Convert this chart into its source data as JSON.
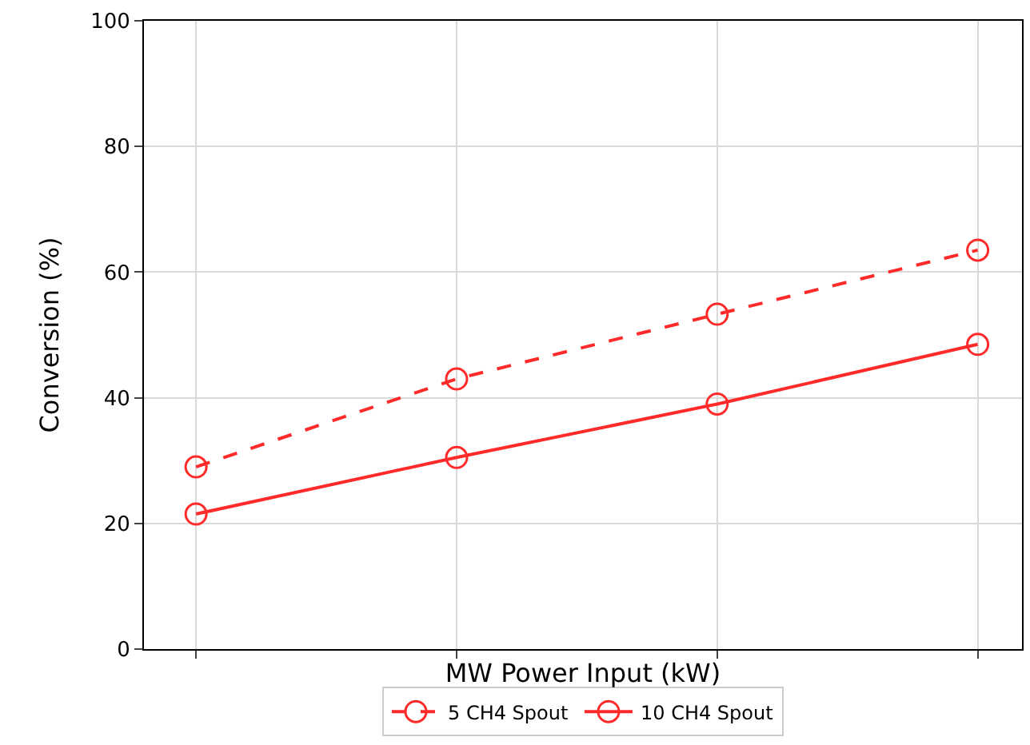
{
  "chart_data": {
    "type": "line",
    "xlabel": "MW Power Input (kW)",
    "ylabel": "Conversion (%)",
    "categories": [
      null,
      null,
      null,
      null
    ],
    "series": [
      {
        "name": "5 CH4 Spout",
        "color": "#ff2a2a",
        "line_style": "dashed",
        "values": [
          29,
          43,
          53.3,
          63.5
        ]
      },
      {
        "name": "10 CH4 Spout",
        "color": "#ff2a2a",
        "line_style": "solid",
        "values": [
          21.5,
          30.5,
          39,
          48.5
        ]
      }
    ],
    "ylim": [
      0,
      100
    ],
    "yticks": [
      0,
      20,
      40,
      60,
      80,
      100
    ],
    "grid": true,
    "legend": "bottom",
    "marker": "circle",
    "tick_labels": "y"
  }
}
